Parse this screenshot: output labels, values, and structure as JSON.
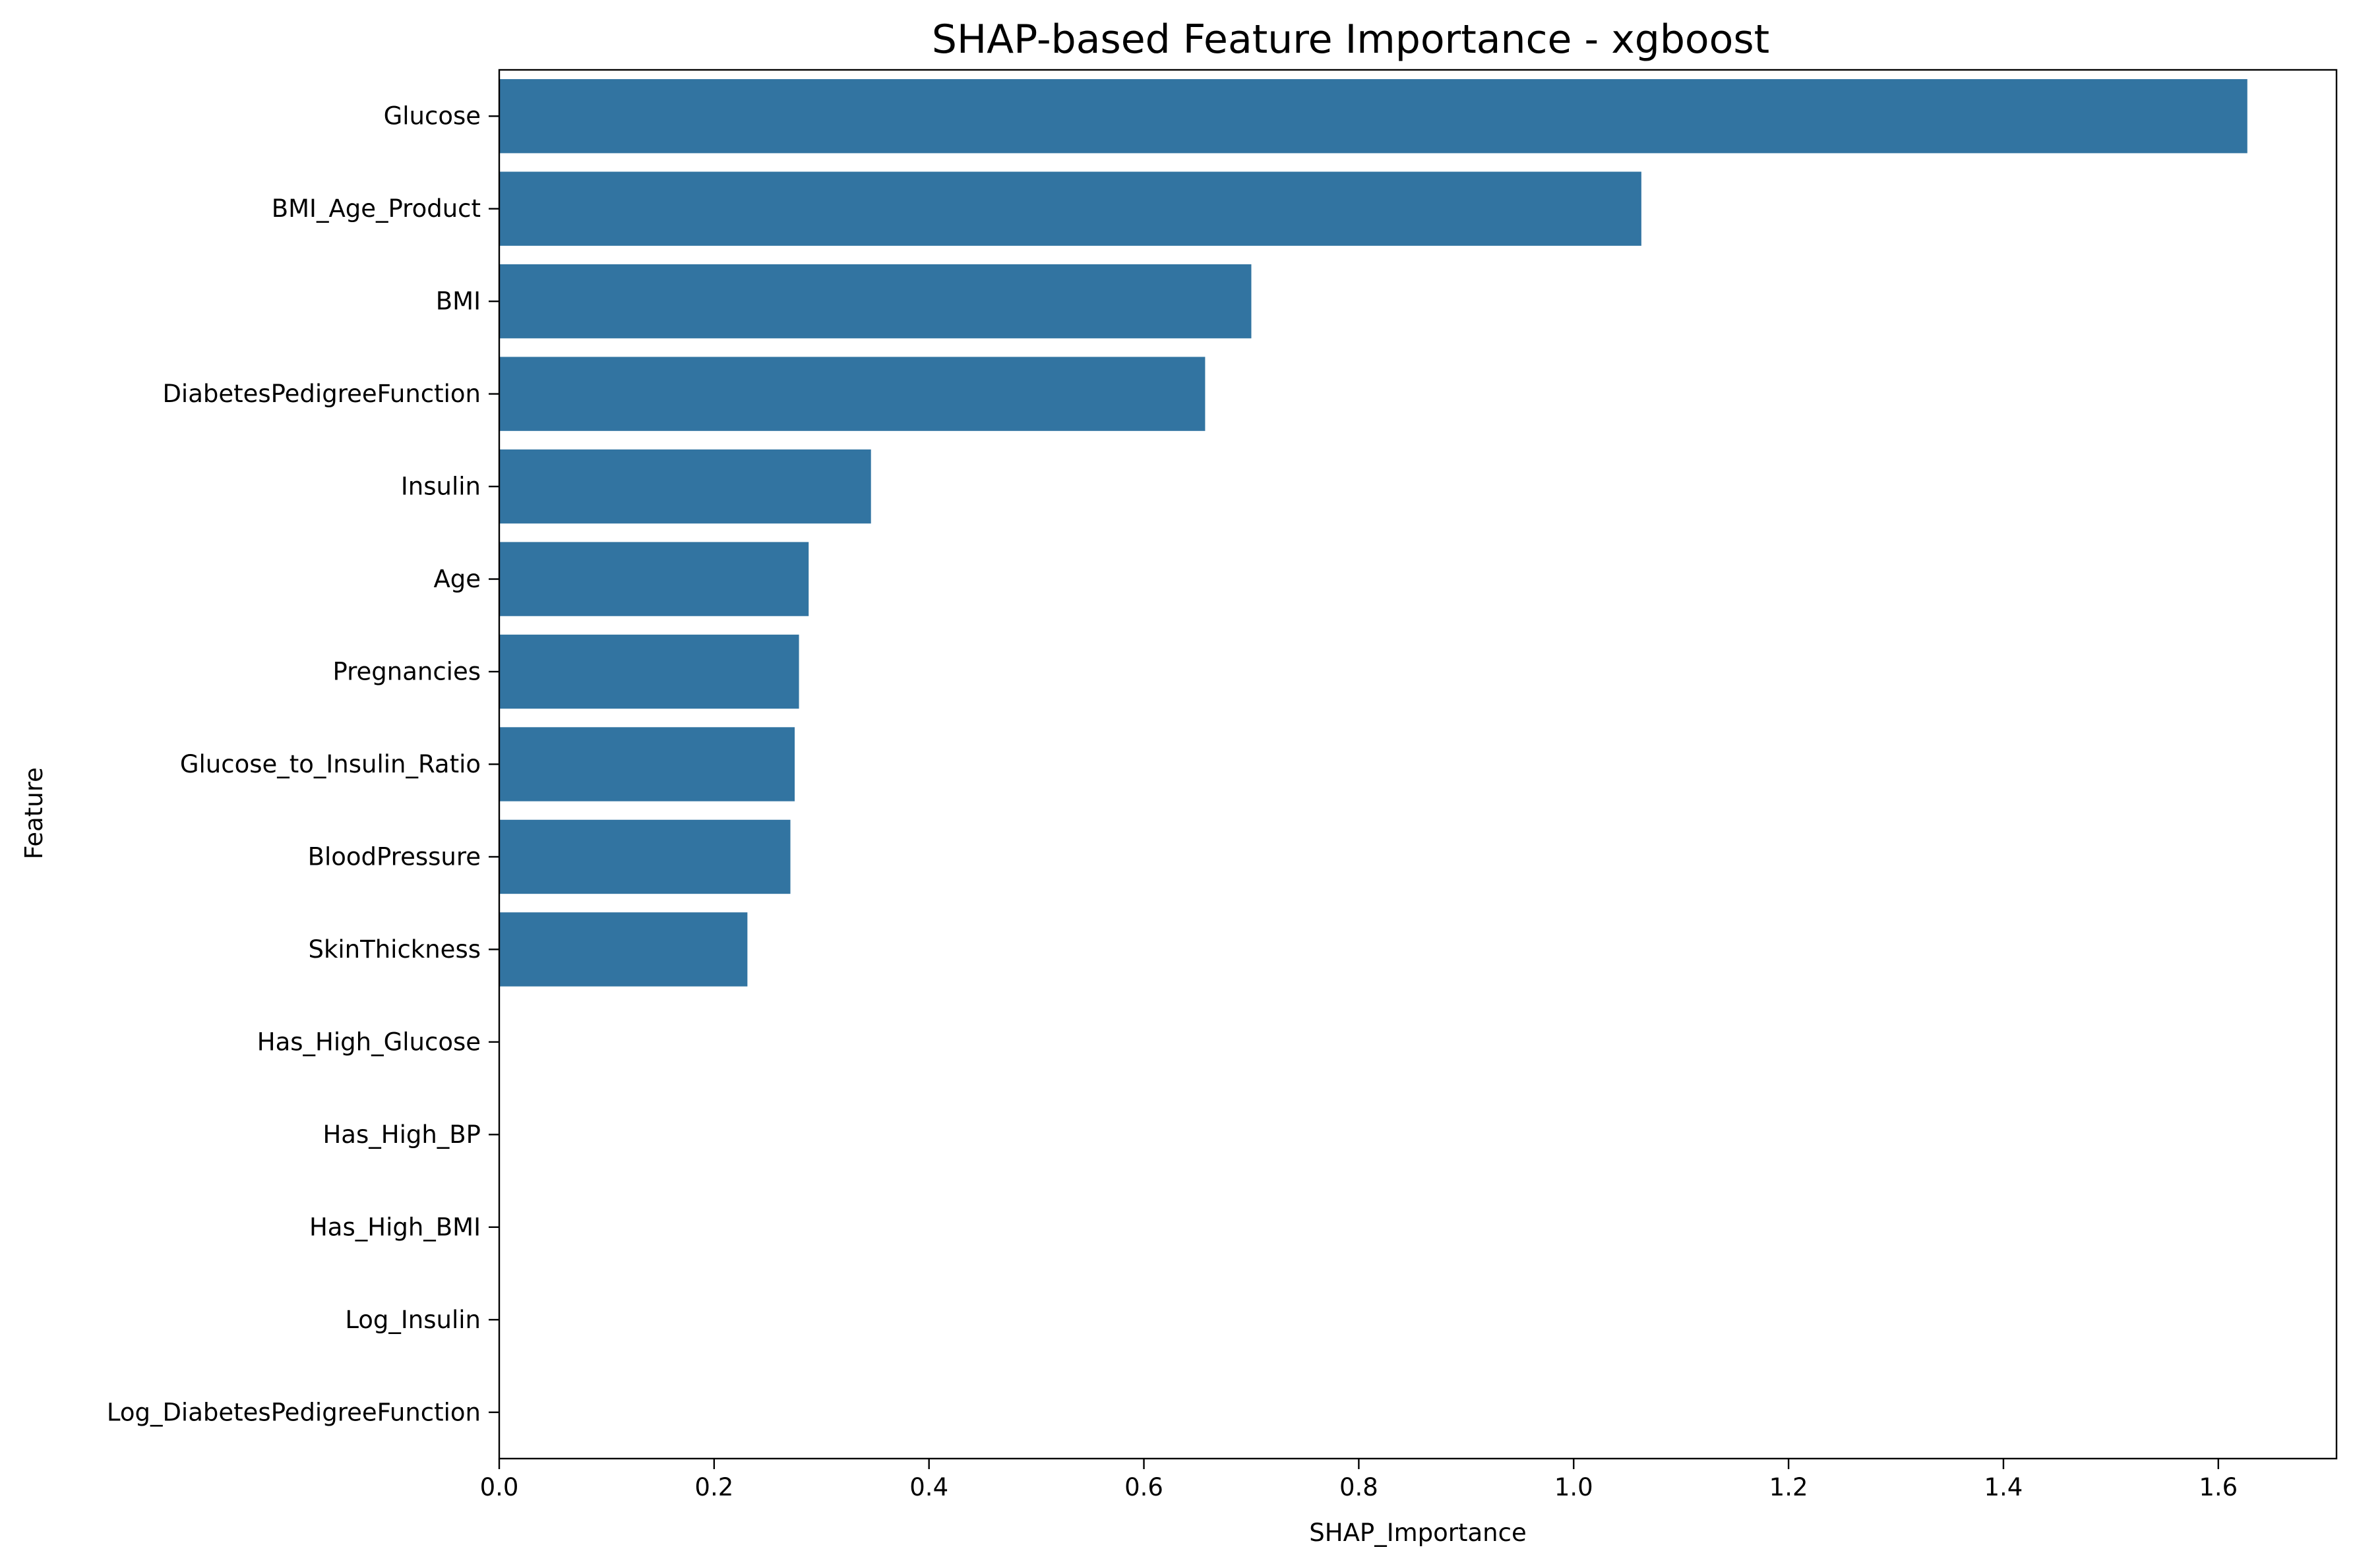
{
  "chart_data": {
    "type": "bar",
    "orientation": "horizontal",
    "title": "SHAP-based Feature Importance - xgboost",
    "xlabel": "SHAP_Importance",
    "ylabel": "Feature",
    "xlim": [
      0,
      1.71
    ],
    "xticks": [
      "0.0",
      "0.2",
      "0.4",
      "0.6",
      "0.8",
      "1.0",
      "1.2",
      "1.4",
      "1.6"
    ],
    "grid": false,
    "bar_color": "#3274a1",
    "categories": [
      "Glucose",
      "BMI_Age_Product",
      "BMI",
      "DiabetesPedigreeFunction",
      "Insulin",
      "Age",
      "Pregnancies",
      "Glucose_to_Insulin_Ratio",
      "BloodPressure",
      "SkinThickness",
      "Has_High_Glucose",
      "Has_High_BP",
      "Has_High_BMI",
      "Log_Insulin",
      "Log_DiabetesPedigreeFunction"
    ],
    "values": [
      1.627,
      1.063,
      0.7,
      0.657,
      0.346,
      0.288,
      0.279,
      0.275,
      0.271,
      0.231,
      0,
      0,
      0,
      0,
      0
    ]
  }
}
